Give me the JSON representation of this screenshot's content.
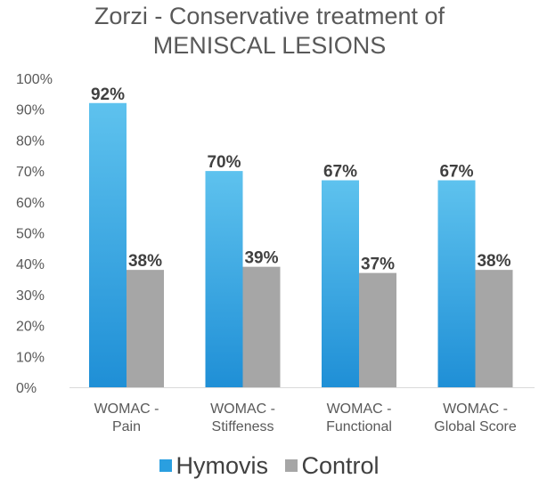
{
  "chart_data": {
    "type": "bar",
    "title_lines": [
      "Zorzi - Conservative treatment of",
      "MENISCAL LESIONS"
    ],
    "categories": [
      [
        "WOMAC -",
        "Pain"
      ],
      [
        "WOMAC -",
        "Stiffeness"
      ],
      [
        "WOMAC -",
        "Functional"
      ],
      [
        "WOMAC -",
        "Global Score"
      ]
    ],
    "series": [
      {
        "name": "Hymovis",
        "values": [
          92,
          70,
          67,
          67
        ],
        "labels": [
          "92%",
          "70%",
          "67%",
          "67%"
        ],
        "color": "#2a9fe0"
      },
      {
        "name": "Control",
        "values": [
          38,
          39,
          37,
          38
        ],
        "labels": [
          "38%",
          "39%",
          "37%",
          "38%"
        ],
        "color": "#a6a6a6"
      }
    ],
    "y_ticks": [
      "0%",
      "10%",
      "20%",
      "30%",
      "40%",
      "50%",
      "60%",
      "70%",
      "80%",
      "90%",
      "100%"
    ],
    "ylim": [
      0,
      100
    ],
    "grid": false,
    "legend_position": "bottom"
  }
}
